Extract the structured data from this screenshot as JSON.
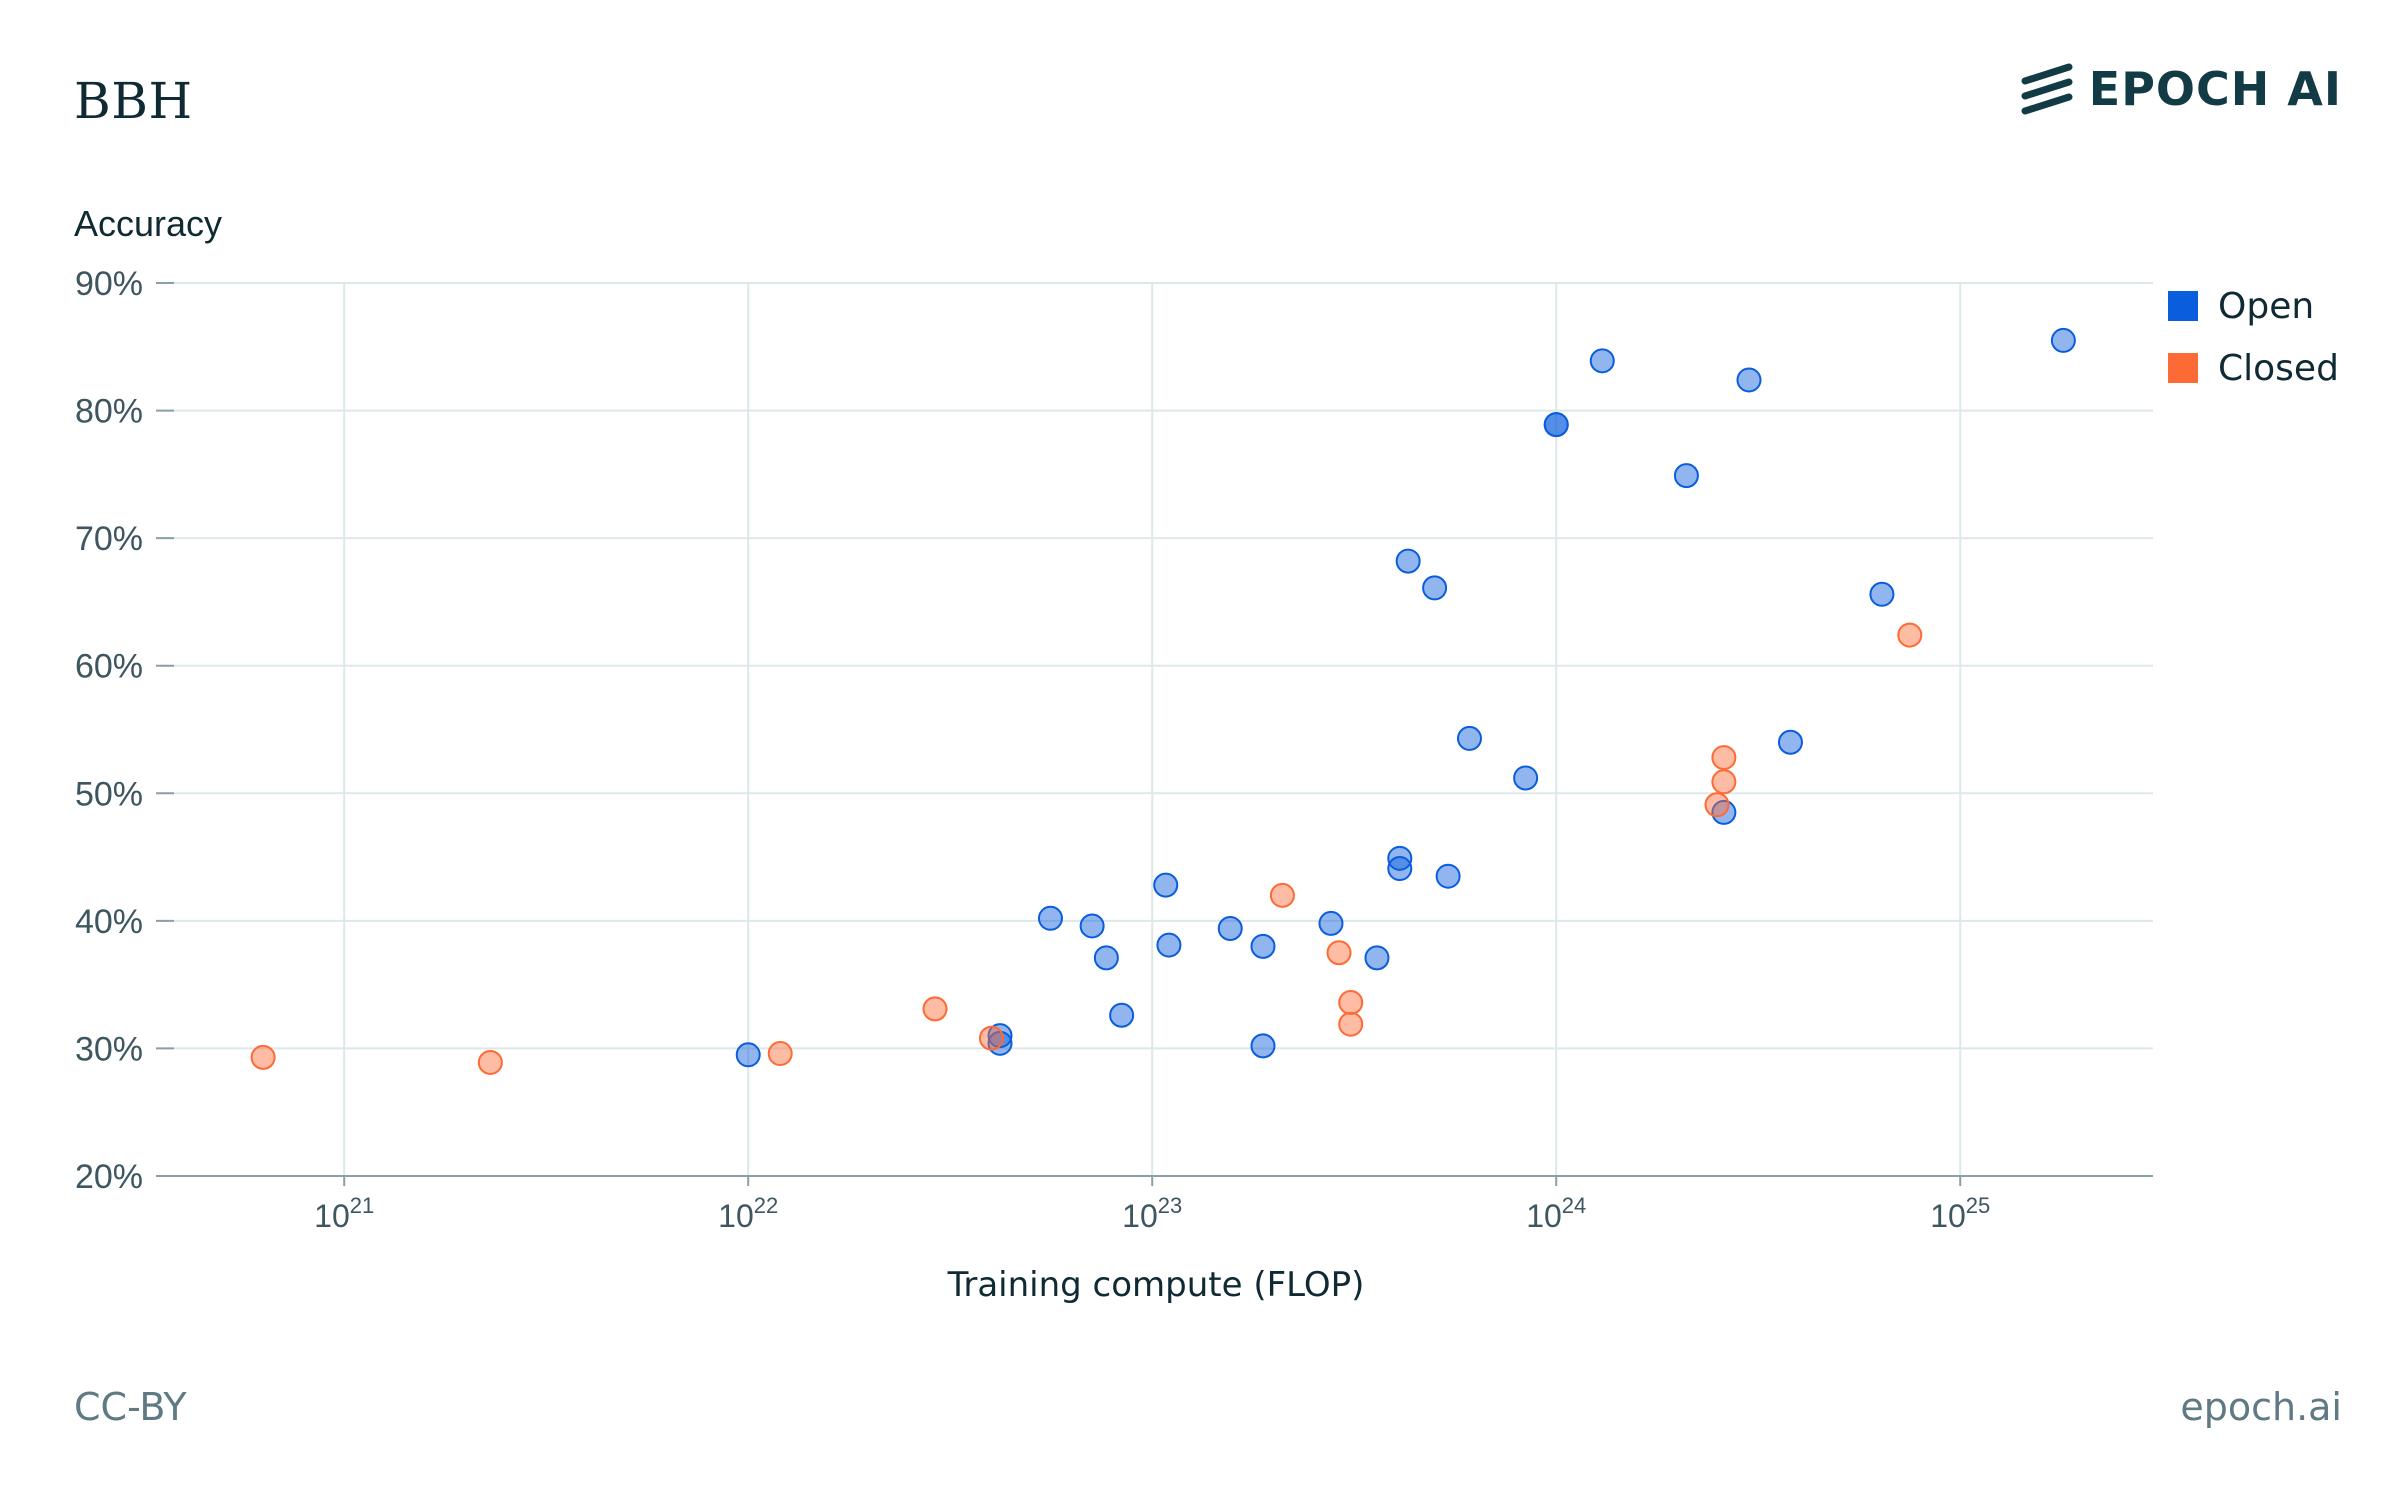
{
  "header": {
    "title": "BBH",
    "logo_text": "EPOCH AI"
  },
  "footer": {
    "license": "CC-BY",
    "site": "epoch.ai"
  },
  "chart_data": {
    "type": "scatter",
    "title": "BBH",
    "xlabel": "Training compute (FLOP)",
    "ylabel": "Accuracy",
    "x_scale": "log",
    "xlim": [
      3.5e+20,
      3e+25
    ],
    "ylim": [
      20,
      90
    ],
    "x_ticks": [
      {
        "value": 1e+21,
        "base": "10",
        "exp": "21"
      },
      {
        "value": 1e+22,
        "base": "10",
        "exp": "22"
      },
      {
        "value": 1e+23,
        "base": "10",
        "exp": "23"
      },
      {
        "value": 1e+24,
        "base": "10",
        "exp": "24"
      },
      {
        "value": 1e+25,
        "base": "10",
        "exp": "25"
      }
    ],
    "y_ticks": [
      {
        "value": 20,
        "label": "20%"
      },
      {
        "value": 30,
        "label": "30%"
      },
      {
        "value": 40,
        "label": "40%"
      },
      {
        "value": 50,
        "label": "50%"
      },
      {
        "value": 60,
        "label": "60%"
      },
      {
        "value": 70,
        "label": "70%"
      },
      {
        "value": 80,
        "label": "80%"
      },
      {
        "value": 90,
        "label": "90%"
      }
    ],
    "grid": true,
    "legend_position": "right",
    "series": [
      {
        "name": "Open",
        "color": "#0a5ddc",
        "points": [
          {
            "x": 5e+23,
            "y": 66.1
          },
          {
            "x": 1.3e+24,
            "y": 83.9
          },
          {
            "x": 1e+24,
            "y": 78.9
          },
          {
            "x": 1e+24,
            "y": 78.9
          },
          {
            "x": 2.1e+24,
            "y": 74.9
          },
          {
            "x": 3e+24,
            "y": 82.4
          },
          {
            "x": 1.8e+25,
            "y": 85.5
          },
          {
            "x": 4.3e+23,
            "y": 68.2
          },
          {
            "x": 6.4e+24,
            "y": 65.6
          },
          {
            "x": 6.1e+23,
            "y": 54.3
          },
          {
            "x": 8.4e+23,
            "y": 51.2
          },
          {
            "x": 3.8e+24,
            "y": 54.0
          },
          {
            "x": 2.6e+24,
            "y": 48.5
          },
          {
            "x": 4.1e+23,
            "y": 44.9
          },
          {
            "x": 4.1e+23,
            "y": 44.1
          },
          {
            "x": 5.4e+23,
            "y": 43.5
          },
          {
            "x": 1.08e+23,
            "y": 42.8
          },
          {
            "x": 5.6e+22,
            "y": 40.2
          },
          {
            "x": 7.1e+22,
            "y": 39.6
          },
          {
            "x": 1.56e+23,
            "y": 39.4
          },
          {
            "x": 2.77e+23,
            "y": 39.8
          },
          {
            "x": 1.1e+23,
            "y": 38.1
          },
          {
            "x": 1.88e+23,
            "y": 38.0
          },
          {
            "x": 7.7e+22,
            "y": 37.1
          },
          {
            "x": 3.6e+23,
            "y": 37.1
          },
          {
            "x": 8.4e+22,
            "y": 32.6
          },
          {
            "x": 4.2e+22,
            "y": 31.0
          },
          {
            "x": 4.2e+22,
            "y": 30.4
          },
          {
            "x": 1e+22,
            "y": 29.5
          },
          {
            "x": 1.88e+23,
            "y": 30.2
          }
        ]
      },
      {
        "name": "Closed",
        "color": "#fe6a35",
        "points": [
          {
            "x": 6.3e+20,
            "y": 29.3
          },
          {
            "x": 2.3e+21,
            "y": 28.9
          },
          {
            "x": 1.2e+22,
            "y": 29.6
          },
          {
            "x": 2.9e+22,
            "y": 33.1
          },
          {
            "x": 4e+22,
            "y": 30.8
          },
          {
            "x": 2.1e+23,
            "y": 42.0
          },
          {
            "x": 2.9e+23,
            "y": 37.5
          },
          {
            "x": 3.1e+23,
            "y": 33.6
          },
          {
            "x": 3.1e+23,
            "y": 31.9
          },
          {
            "x": 2.6e+24,
            "y": 52.8
          },
          {
            "x": 2.6e+24,
            "y": 50.9
          },
          {
            "x": 2.5e+24,
            "y": 49.1
          },
          {
            "x": 7.5e+24,
            "y": 62.4
          }
        ]
      }
    ]
  }
}
